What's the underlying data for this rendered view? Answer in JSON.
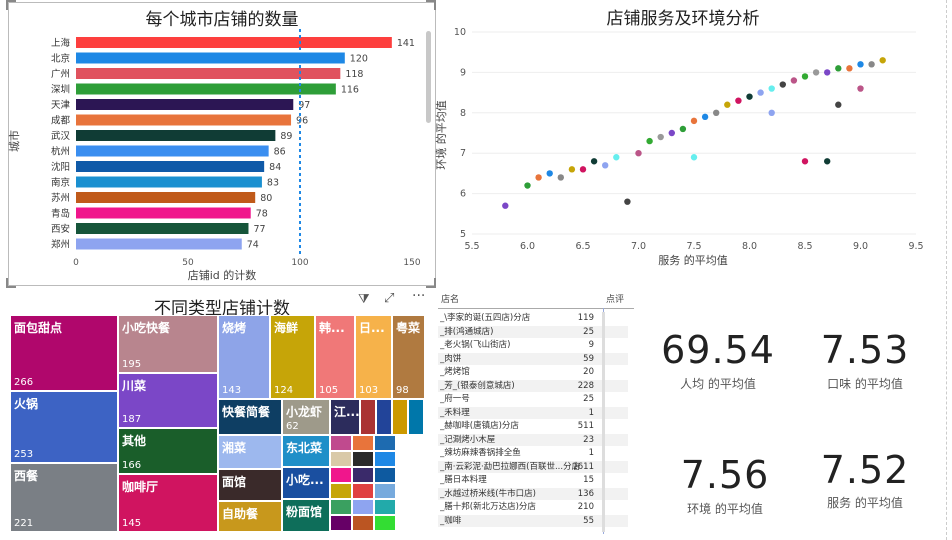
{
  "bar_chart": {
    "title": "每个城市店铺的数量",
    "xlabel": "店铺id 的计数",
    "ylabel": "城市",
    "xticks": [
      "0",
      "50",
      "100",
      "150"
    ],
    "colors": [
      "#FD3F3E",
      "#1E88E5",
      "#E0525E",
      "#2E9E38",
      "#2C1654",
      "#E8743B",
      "#103C35",
      "#3A8EF0",
      "#0F5AA8",
      "#1A90D0",
      "#C05A1A",
      "#F0168C",
      "#16553A",
      "#8EA4F0"
    ]
  },
  "scatter_chart": {
    "title": "店铺服务及环境分析",
    "xlabel": "服务 的平均值",
    "ylabel": "环境 的平均值",
    "xticks": [
      "5.5",
      "6.0",
      "6.5",
      "7.0",
      "7.5",
      "8.0",
      "8.5",
      "9.0",
      "9.5"
    ],
    "yticks": [
      "5",
      "6",
      "7",
      "8",
      "9",
      "10"
    ]
  },
  "treemap": {
    "title": "不同类型店铺计数",
    "items": [
      {
        "label": "面包甜点",
        "value": "266",
        "color": "#B0076C"
      },
      {
        "label": "火锅",
        "value": "253",
        "color": "#3D63C4"
      },
      {
        "label": "西餐",
        "value": "221",
        "color": "#7A7F85"
      },
      {
        "label": "小吃快餐",
        "value": "195",
        "color": "#B8858E"
      },
      {
        "label": "川菜",
        "value": "187",
        "color": "#7B47C7"
      },
      {
        "label": "其他",
        "value": "166",
        "color": "#1A5E2A"
      },
      {
        "label": "咖啡厅",
        "value": "145",
        "color": "#D01460"
      },
      {
        "label": "烧烤",
        "value": "143",
        "color": "#8EA4E8"
      },
      {
        "label": "海鲜",
        "value": "124",
        "color": "#C6A508"
      },
      {
        "label": "韩...",
        "value": "105",
        "color": "#F07878"
      },
      {
        "label": "日...",
        "value": "103",
        "color": "#F6B24A"
      },
      {
        "label": "粤菜",
        "value": "98",
        "color": "#B07A40"
      },
      {
        "label": "快餐简餐",
        "value": "",
        "color": "#0E3E63"
      },
      {
        "label": "小龙虾",
        "value": "62",
        "color": "#9E9A8A"
      },
      {
        "label": "江...",
        "value": "",
        "color": "#2C2C5C"
      },
      {
        "label": "湘菜",
        "value": "",
        "color": "#9DB8EE"
      },
      {
        "label": "东北菜",
        "value": "",
        "color": "#1F8FC8"
      },
      {
        "label": "面馆",
        "value": "",
        "color": "#3A2A2A"
      },
      {
        "label": "小吃...",
        "value": "",
        "color": "#1A4FA0"
      },
      {
        "label": "自助餐",
        "value": "",
        "color": "#C8981C"
      },
      {
        "label": "粉面馆",
        "value": "",
        "color": "#0E6E5A"
      }
    ]
  },
  "table": {
    "headers": [
      "店名",
      "点评"
    ],
    "rows": [
      {
        "name": "_\\李家的诞(五四店)分店",
        "v": "119"
      },
      {
        "name": "_排(鸿通城店)",
        "v": "25"
      },
      {
        "name": "_老火锅(飞山街店)",
        "v": "9"
      },
      {
        "name": "_肉饼",
        "v": "59"
      },
      {
        "name": "_烤烤馆",
        "v": "20"
      },
      {
        "name": "_芳_(银泰创意城店)",
        "v": "228"
      },
      {
        "name": "_府一号",
        "v": "25"
      },
      {
        "name": "_禾料理",
        "v": "1"
      },
      {
        "name": "_赫咖啡(唐镇店)分店",
        "v": "511"
      },
      {
        "name": "_记涮烤小木屋",
        "v": "23"
      },
      {
        "name": "_辣坊麻辣香锅排全鱼",
        "v": "1"
      },
      {
        "name": "_南·云彩泥·勐巴拉娜西(百联世...分店",
        "v": "1611"
      },
      {
        "name": "_膳日本料理",
        "v": "15"
      },
      {
        "name": "_水越过桥米线(牛市口店)",
        "v": "136"
      },
      {
        "name": "_膳十邦(新北万达店)分店",
        "v": "210"
      },
      {
        "name": "_咖啡",
        "v": "55"
      }
    ]
  },
  "kpis": [
    {
      "value": "69.54",
      "label": "人均 的平均值"
    },
    {
      "value": "7.53",
      "label": "口味 的平均值"
    },
    {
      "value": "7.56",
      "label": "环境 的平均值"
    },
    {
      "value": "7.52",
      "label": "服务 的平均值"
    }
  ],
  "chart_data": [
    {
      "type": "bar",
      "title": "每个城市店铺的数量",
      "xlabel": "店铺id 的计数",
      "ylabel": "城市",
      "categories": [
        "上海",
        "北京",
        "广州",
        "深圳",
        "天津",
        "成都",
        "武汉",
        "杭州",
        "沈阳",
        "南京",
        "苏州",
        "青岛",
        "西安",
        "郑州"
      ],
      "values": [
        141,
        120,
        118,
        116,
        97,
        96,
        89,
        86,
        84,
        83,
        80,
        78,
        77,
        74
      ],
      "xlim": [
        0,
        150
      ],
      "reference_line": 100
    },
    {
      "type": "scatter",
      "title": "店铺服务及环境分析",
      "xlabel": "服务 的平均值",
      "ylabel": "环境 的平均值",
      "xlim": [
        5.5,
        9.5
      ],
      "ylim": [
        5,
        10
      ],
      "points": [
        [
          5.8,
          5.7
        ],
        [
          6.0,
          6.2
        ],
        [
          6.1,
          6.4
        ],
        [
          6.2,
          6.5
        ],
        [
          6.3,
          6.4
        ],
        [
          6.4,
          6.6
        ],
        [
          6.5,
          6.6
        ],
        [
          6.6,
          6.8
        ],
        [
          6.7,
          6.7
        ],
        [
          6.8,
          6.9
        ],
        [
          6.9,
          5.8
        ],
        [
          7.0,
          7.0
        ],
        [
          7.1,
          7.3
        ],
        [
          7.2,
          7.4
        ],
        [
          7.3,
          7.5
        ],
        [
          7.4,
          7.6
        ],
        [
          7.5,
          7.8
        ],
        [
          7.6,
          7.9
        ],
        [
          7.7,
          8.0
        ],
        [
          7.8,
          8.2
        ],
        [
          7.9,
          8.3
        ],
        [
          8.0,
          8.4
        ],
        [
          8.1,
          8.5
        ],
        [
          8.2,
          8.6
        ],
        [
          8.3,
          8.7
        ],
        [
          8.4,
          8.8
        ],
        [
          8.5,
          8.9
        ],
        [
          8.6,
          9.0
        ],
        [
          8.7,
          9.0
        ],
        [
          8.8,
          9.1
        ],
        [
          8.9,
          9.1
        ],
        [
          9.0,
          9.2
        ],
        [
          9.1,
          9.2
        ],
        [
          9.2,
          9.3
        ],
        [
          8.5,
          6.8
        ],
        [
          8.7,
          6.8
        ],
        [
          8.2,
          8.0
        ],
        [
          7.5,
          6.9
        ],
        [
          8.8,
          8.2
        ],
        [
          9.0,
          8.6
        ]
      ]
    },
    {
      "type": "treemap",
      "title": "不同类型店铺计数",
      "categories": [
        "面包甜点",
        "火锅",
        "西餐",
        "小吃快餐",
        "川菜",
        "其他",
        "咖啡厅",
        "烧烤",
        "海鲜",
        "韩...",
        "日...",
        "粤菜",
        "小龙虾"
      ],
      "values": [
        266,
        253,
        221,
        195,
        187,
        166,
        145,
        143,
        124,
        105,
        103,
        98,
        62
      ]
    }
  ]
}
